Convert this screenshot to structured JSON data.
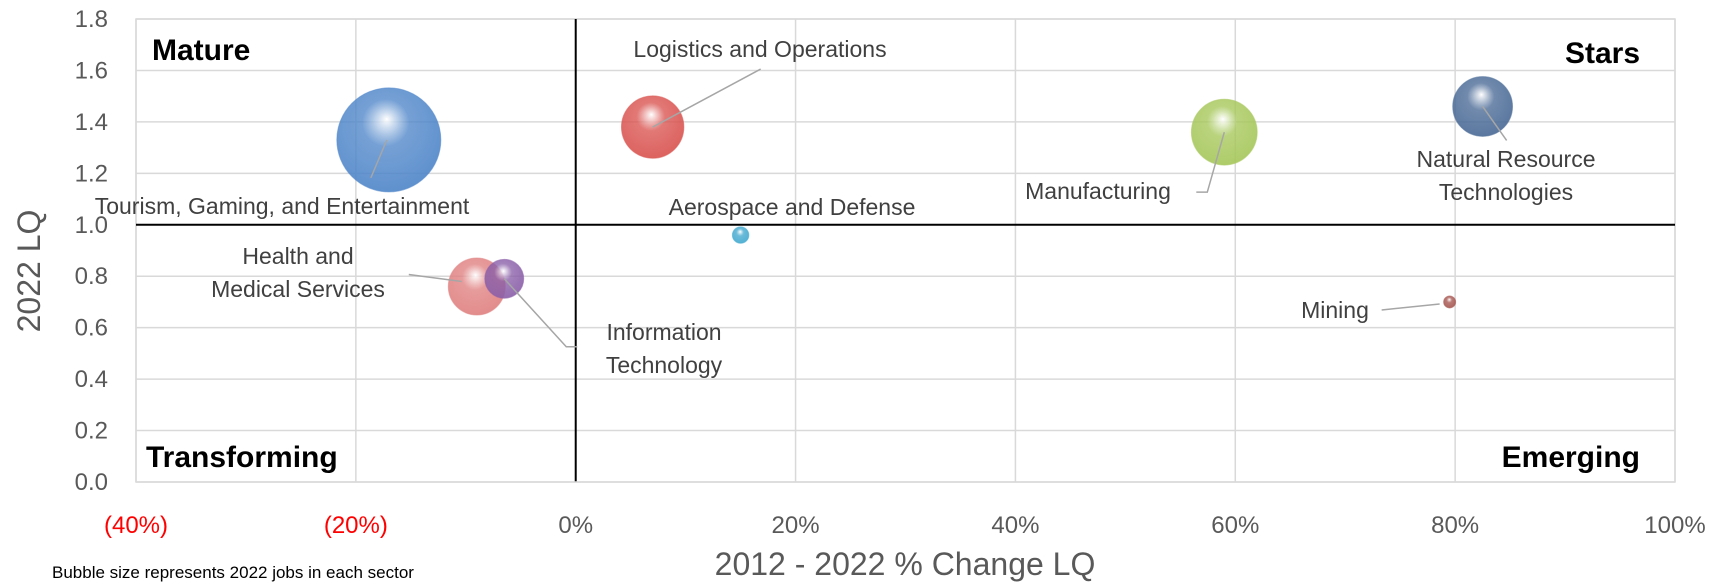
{
  "chart_data": {
    "type": "bubble",
    "xlabel": "2012 - 2022 % Change LQ",
    "ylabel": "2022 LQ",
    "xlim": [
      -40,
      100
    ],
    "ylim": [
      0,
      1.8
    ],
    "x_ticks": [
      {
        "value": -40,
        "label": "(40%)",
        "color": "#ff0000"
      },
      {
        "value": -20,
        "label": "(20%)",
        "color": "#ff0000"
      },
      {
        "value": 0,
        "label": "0%",
        "color": "#595959"
      },
      {
        "value": 20,
        "label": "20%",
        "color": "#595959"
      },
      {
        "value": 40,
        "label": "40%",
        "color": "#595959"
      },
      {
        "value": 60,
        "label": "60%",
        "color": "#595959"
      },
      {
        "value": 80,
        "label": "80%",
        "color": "#595959"
      },
      {
        "value": 100,
        "label": "100%",
        "color": "#595959"
      }
    ],
    "y_ticks": [
      {
        "value": 0,
        "label": "0.0"
      },
      {
        "value": 0.2,
        "label": "0.2"
      },
      {
        "value": 0.4,
        "label": "0.4"
      },
      {
        "value": 0.6,
        "label": "0.6"
      },
      {
        "value": 0.8,
        "label": "0.8"
      },
      {
        "value": 1.0,
        "label": "1.0"
      },
      {
        "value": 1.2,
        "label": "1.2"
      },
      {
        "value": 1.4,
        "label": "1.4"
      },
      {
        "value": 1.6,
        "label": "1.6"
      },
      {
        "value": 1.8,
        "label": "1.8"
      }
    ],
    "grid": true,
    "quadrants": [
      "Mature",
      "Stars",
      "Transforming",
      "Emerging"
    ],
    "size_note": "Bubble size represents 2022 jobs in each sector",
    "series": [
      {
        "name": "Tourism, Gaming, and Entertainment",
        "label_lines": [
          "Tourism, Gaming, and Entertainment"
        ],
        "x": -17,
        "y": 1.33,
        "size": 100,
        "color": "#4f86c9"
      },
      {
        "name": "Logistics and Operations",
        "label_lines": [
          "Logistics and Operations"
        ],
        "x": 7,
        "y": 1.38,
        "size": 36,
        "color": "#d9534f"
      },
      {
        "name": "Aerospace and Defense",
        "label_lines": [
          "Aerospace and Defense"
        ],
        "x": 15,
        "y": 0.96,
        "size": 2.5,
        "color": "#42a9cf"
      },
      {
        "name": "Health and Medical Services",
        "label_lines": [
          "Health and",
          "Medical Services"
        ],
        "x": -9,
        "y": 0.76,
        "size": 30,
        "color": "#e08080"
      },
      {
        "name": "Information Technology",
        "label_lines": [
          "Information",
          "Technology"
        ],
        "x": -6.5,
        "y": 0.79,
        "size": 14,
        "color": "#8a5fa8"
      },
      {
        "name": "Manufacturing",
        "label_lines": [
          "Manufacturing"
        ],
        "x": 59,
        "y": 1.36,
        "size": 40,
        "color": "#a6c75a"
      },
      {
        "name": "Natural Resource Technologies",
        "label_lines": [
          "Natural Resource",
          "Technologies"
        ],
        "x": 82.5,
        "y": 1.46,
        "size": 33,
        "color": "#4a6a96"
      },
      {
        "name": "Mining",
        "label_lines": [
          "Mining"
        ],
        "x": 79.5,
        "y": 0.7,
        "size": 0.4,
        "color": "#a6554f"
      }
    ]
  }
}
